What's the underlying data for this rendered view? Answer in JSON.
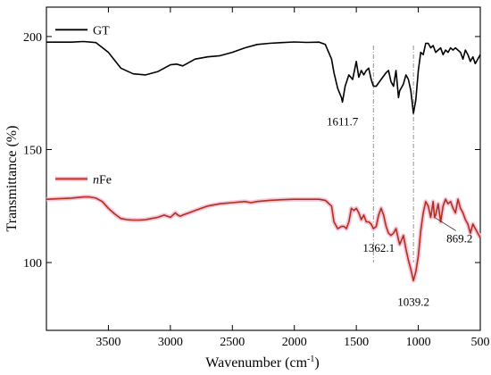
{
  "chart_data": {
    "type": "line",
    "xlabel": "Wavenumber (cm",
    "xlabel_sup": "-1",
    "xlabel_close": ")",
    "ylabel": "Transmittance (%)",
    "xlim": [
      4000,
      500
    ],
    "ylim": [
      70,
      213
    ],
    "x_ticks": [
      3500,
      3000,
      2500,
      2000,
      1500,
      1000,
      500
    ],
    "y_ticks": [
      100,
      150,
      200
    ],
    "grid": false,
    "legend_placement": "top-left",
    "series": [
      {
        "name": "GT",
        "name_italic": "",
        "name_rest": "GT",
        "color": "#000000",
        "halo": "",
        "x": [
          4000,
          3800,
          3700,
          3600,
          3500,
          3400,
          3300,
          3200,
          3100,
          3000,
          2950,
          2900,
          2800,
          2700,
          2600,
          2500,
          2400,
          2300,
          2200,
          2100,
          2000,
          1900,
          1800,
          1750,
          1700,
          1680,
          1650,
          1620,
          1611.7,
          1590,
          1560,
          1530,
          1500,
          1480,
          1460,
          1440,
          1420,
          1400,
          1380,
          1362.1,
          1340,
          1300,
          1260,
          1240,
          1220,
          1200,
          1180,
          1160,
          1150,
          1120,
          1100,
          1080,
          1060,
          1039.2,
          1020,
          1000,
          980,
          960,
          940,
          920,
          900,
          880,
          860,
          840,
          820,
          800,
          780,
          760,
          740,
          720,
          700,
          680,
          660,
          640,
          620,
          600,
          580,
          560,
          540,
          520,
          500
        ],
        "y": [
          197.5,
          197.5,
          197.8,
          197.3,
          193,
          186,
          183.5,
          183,
          184.5,
          187.5,
          187.8,
          187,
          190,
          191,
          191.5,
          193,
          195,
          196.5,
          197,
          197.3,
          197.6,
          197.4,
          197.5,
          196.5,
          190,
          184,
          177,
          173,
          171,
          178,
          183,
          181,
          189,
          182,
          185,
          183,
          185,
          186,
          181,
          178,
          178,
          181,
          184,
          185,
          180,
          178,
          185,
          173,
          176,
          179,
          183,
          181,
          176,
          166,
          172,
          185,
          193,
          192,
          197,
          197,
          195,
          196,
          193,
          194,
          195,
          192,
          194,
          193,
          195,
          194,
          195,
          194,
          193,
          190,
          194,
          192,
          189,
          191,
          188,
          190,
          192
        ]
      },
      {
        "name": "nFe",
        "name_italic": "n",
        "name_rest": "Fe",
        "color": "#b0301c",
        "halo": "#f4c0d6",
        "x": [
          4000,
          3800,
          3700,
          3650,
          3600,
          3550,
          3500,
          3450,
          3400,
          3350,
          3300,
          3250,
          3200,
          3150,
          3100,
          3050,
          3000,
          2980,
          2960,
          2940,
          2920,
          2900,
          2850,
          2800,
          2700,
          2600,
          2500,
          2400,
          2350,
          2300,
          2200,
          2100,
          2000,
          1900,
          1800,
          1750,
          1700,
          1680,
          1650,
          1620,
          1600,
          1580,
          1560,
          1540,
          1520,
          1500,
          1480,
          1460,
          1440,
          1420,
          1400,
          1380,
          1362.1,
          1340,
          1320,
          1300,
          1280,
          1260,
          1240,
          1220,
          1200,
          1180,
          1160,
          1150,
          1120,
          1100,
          1080,
          1060,
          1039.2,
          1020,
          1000,
          980,
          960,
          940,
          920,
          900,
          880,
          869.2,
          860,
          840,
          820,
          800,
          780,
          760,
          740,
          720,
          700,
          680,
          660,
          640,
          620,
          600,
          580,
          560,
          540,
          520,
          500
        ],
        "y": [
          128,
          128.5,
          129,
          129,
          128.5,
          127,
          124,
          121.5,
          119.5,
          119,
          118.8,
          118.8,
          119,
          119.5,
          120,
          121,
          120,
          121,
          122,
          121,
          120.5,
          121,
          122,
          123,
          125,
          126,
          126.5,
          127,
          126.5,
          127,
          127.5,
          127.8,
          128,
          128,
          128,
          127.5,
          125,
          118,
          115,
          116,
          116,
          115,
          118,
          124,
          123,
          124,
          122,
          119,
          121,
          118,
          118,
          117,
          115,
          116,
          121,
          124,
          121,
          116,
          113,
          112,
          113,
          115,
          110,
          108,
          112,
          106,
          101,
          97,
          92,
          96,
          103,
          114,
          122,
          127,
          125,
          120,
          127,
          120,
          121,
          126,
          118,
          125,
          128,
          126,
          127,
          124,
          122,
          128,
          124,
          122,
          119,
          117,
          113,
          117,
          115,
          113,
          111
        ]
      }
    ],
    "annotations": [
      {
        "text": "1611.7",
        "x": 1611.7,
        "y": 171
      },
      {
        "text": "1362.1",
        "x": 1362.1,
        "y": 115
      },
      {
        "text": "1039.2",
        "x": 1039.2,
        "y": 92
      },
      {
        "text": "869.2",
        "x": 869.2,
        "y": 120
      }
    ],
    "reference_lines_x": [
      1362.1,
      1039.2
    ]
  }
}
